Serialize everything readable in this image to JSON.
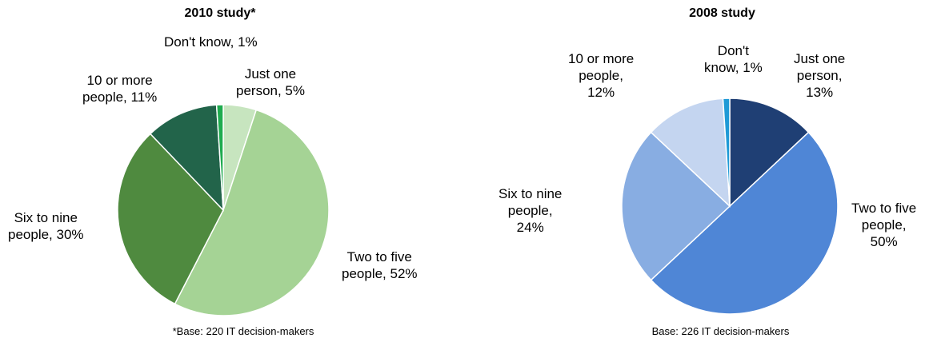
{
  "chart_data": [
    {
      "type": "pie",
      "title": "2010 study*",
      "note": "*Base: 220 IT decision-makers",
      "slices": [
        {
          "label": "Just one person",
          "value": 5,
          "color": "#c7e5bf",
          "label_text": "Just one person, 5%"
        },
        {
          "label": "Two to five people",
          "value": 52,
          "color": "#a5d395",
          "label_text": "Two to five people, 52%"
        },
        {
          "label": "Six to nine people",
          "value": 30,
          "color": "#4f8a3f",
          "label_text": "Six to nine people, 30%"
        },
        {
          "label": "10 or more people",
          "value": 11,
          "color": "#22644a",
          "label_text": "10 or more people, 11%"
        },
        {
          "label": "Don't know",
          "value": 1,
          "color": "#1fab4f",
          "label_text": "Don't know, 1%"
        }
      ]
    },
    {
      "type": "pie",
      "title": "2008 study",
      "note": "Base: 226 IT decision-makers",
      "slices": [
        {
          "label": "Just one person",
          "value": 13,
          "color": "#1f3f74",
          "label_text": "Just one person, 13%"
        },
        {
          "label": "Two to five people",
          "value": 50,
          "color": "#4f86d6",
          "label_text": "Two to five people, 50%"
        },
        {
          "label": "Six to nine people",
          "value": 24,
          "color": "#88ade2",
          "label_text": "Six to nine people, 24%"
        },
        {
          "label": "10 or more people",
          "value": 12,
          "color": "#c4d5f0",
          "label_text": "10 or more people, 12%"
        },
        {
          "label": "Don't know",
          "value": 1,
          "color": "#1f9ad6",
          "label_text": "Don't know, 1%"
        }
      ]
    }
  ]
}
